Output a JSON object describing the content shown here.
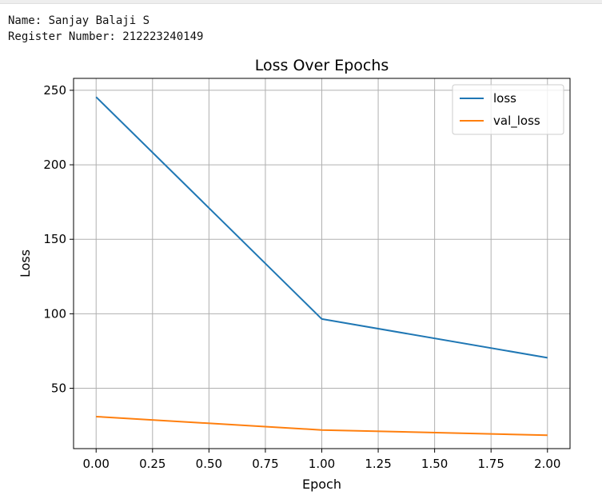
{
  "output": {
    "name_line": "Name: Sanjay Balaji S",
    "register_line": "Register Number: 212223240149"
  },
  "chart_data": {
    "type": "line",
    "title": "Loss Over Epochs",
    "xlabel": "Epoch",
    "ylabel": "Loss",
    "x": [
      0,
      1,
      2
    ],
    "series": [
      {
        "name": "loss",
        "values": [
          245.5,
          96.5,
          70.5
        ],
        "color": "#1f77b4"
      },
      {
        "name": "val_loss",
        "values": [
          31.0,
          22.0,
          18.5
        ],
        "color": "#ff7f0e"
      }
    ],
    "xlim": [
      -0.1,
      2.1
    ],
    "ylim": [
      9.5,
      258
    ],
    "xticks": [
      0.0,
      0.25,
      0.5,
      0.75,
      1.0,
      1.25,
      1.5,
      1.75,
      2.0
    ],
    "xtick_labels": [
      "0.00",
      "0.25",
      "0.50",
      "0.75",
      "1.00",
      "1.25",
      "1.50",
      "1.75",
      "2.00"
    ],
    "yticks": [
      50,
      100,
      150,
      200,
      250
    ],
    "ytick_labels": [
      "50",
      "100",
      "150",
      "200",
      "250"
    ],
    "grid": true,
    "legend": "top-right"
  }
}
